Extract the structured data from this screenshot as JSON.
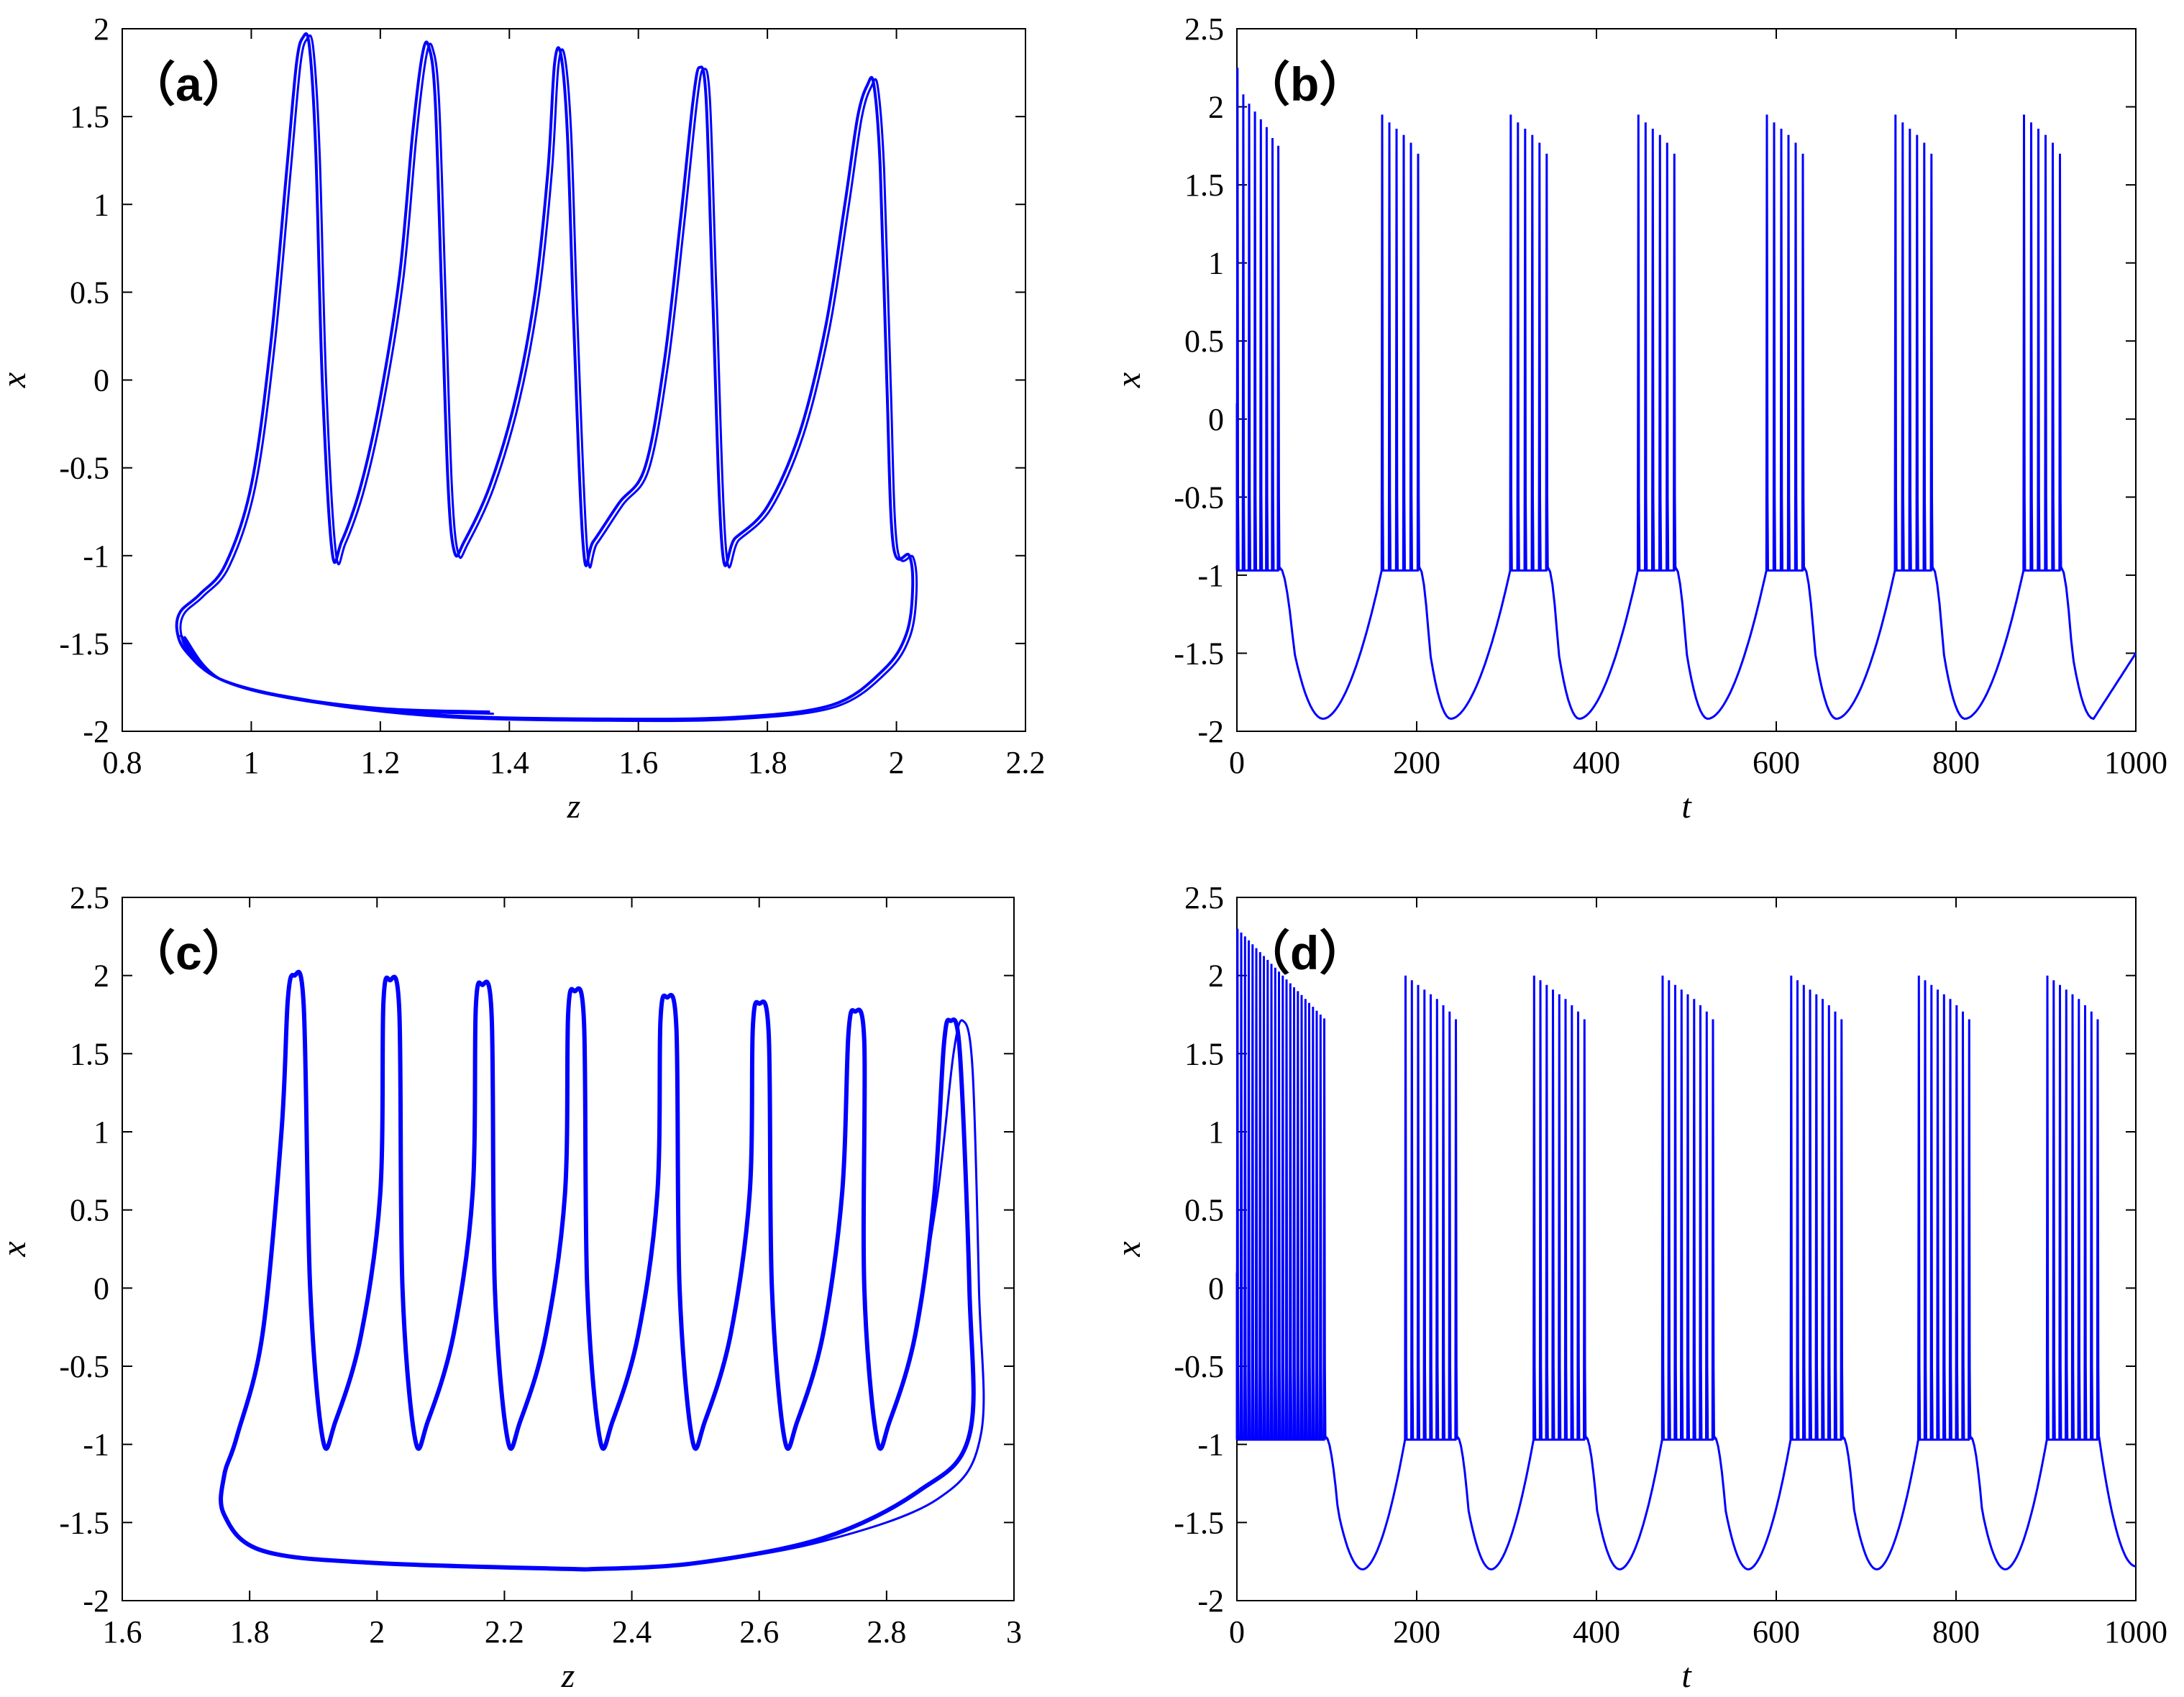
{
  "chart_data": [
    {
      "type": "line",
      "panel_label": "（a）",
      "xlabel": "z",
      "ylabel": "x",
      "xlim": [
        0.8,
        2.2
      ],
      "ylim": [
        -2,
        2
      ],
      "xticks": [
        "0.8",
        "1",
        "1.2",
        "1.4",
        "1.6",
        "1.8",
        "2",
        "2.2"
      ],
      "yticks": [
        "-2",
        "-1.5",
        "-1",
        "-0.5",
        "0",
        "0.5",
        "1",
        "1.5",
        "2"
      ],
      "line_color": "#0000ff",
      "series": [
        {
          "x": [
            1.37,
            1.2,
            1.05,
            0.95,
            0.9,
            0.885,
            0.89,
            0.92,
            0.96,
            1.0,
            1.03,
            1.055,
            1.07,
            1.08,
            1.09,
            1.1,
            1.11,
            1.125,
            1.14,
            1.17,
            1.2,
            1.23,
            1.25,
            1.265,
            1.275,
            1.285,
            1.295,
            1.305,
            1.315,
            1.33,
            1.37,
            1.41,
            1.44,
            1.46,
            1.47,
            1.48,
            1.49,
            1.5,
            1.515,
            1.53,
            1.57,
            1.61,
            1.64,
            1.665,
            1.685,
            1.695,
            1.705,
            1.715,
            1.73,
            1.75,
            1.8,
            1.85,
            1.89,
            1.92,
            1.94,
            1.955,
            1.965,
            1.975,
            1.985,
            1.995,
            2.02,
            2.025,
            2.015,
            1.98,
            1.9,
            1.75,
            1.55,
            1.3,
            1.1,
            0.95,
            0.89
          ],
          "y": [
            -1.89,
            -1.87,
            -1.8,
            -1.7,
            -1.55,
            -1.43,
            -1.32,
            -1.22,
            -1.05,
            -0.6,
            0.2,
            1.2,
            1.8,
            1.95,
            1.9,
            1.3,
            0.0,
            -0.97,
            -0.92,
            -0.6,
            -0.1,
            0.6,
            1.4,
            1.85,
            1.9,
            1.6,
            0.5,
            -0.6,
            -0.98,
            -0.92,
            -0.6,
            -0.1,
            0.5,
            1.2,
            1.8,
            1.85,
            1.4,
            0.3,
            -0.97,
            -0.92,
            -0.7,
            -0.5,
            0.1,
            0.9,
            1.6,
            1.78,
            1.6,
            0.5,
            -0.96,
            -0.9,
            -0.72,
            -0.3,
            0.3,
            1.0,
            1.5,
            1.68,
            1.68,
            1.2,
            0.0,
            -0.94,
            -1.0,
            -1.2,
            -1.45,
            -1.65,
            -1.85,
            -1.92,
            -1.93,
            -1.91,
            -1.83,
            -1.7,
            -1.45
          ]
        }
      ]
    },
    {
      "type": "line",
      "panel_label": "（b）",
      "xlabel": "t",
      "ylabel": "x",
      "xlim": [
        0,
        1000
      ],
      "ylim": [
        -2,
        2.5
      ],
      "xticks": [
        "0",
        "200",
        "400",
        "600",
        "800",
        "1000"
      ],
      "yticks": [
        "-2",
        "-1.5",
        "-1",
        "-0.5",
        "0",
        "0.5",
        "1",
        "1.5",
        "2",
        "2.5"
      ],
      "line_color": "#0000ff",
      "series": [
        {
          "description_free": true,
          "burst_starts": [
            0,
            161,
            304,
            446,
            589,
            732,
            875
          ],
          "spike_offsets": [
            0,
            8,
            16,
            24,
            32,
            40
          ],
          "spike_peaks": [
            1.95,
            1.9,
            1.86,
            1.82,
            1.77,
            1.7
          ],
          "initial_burst_peaks": [
            2.25,
            2.08,
            2.02,
            1.97,
            1.92,
            1.87,
            1.8,
            1.75
          ],
          "trough_times": [
            96,
            238,
            381,
            524,
            667,
            810,
            953
          ],
          "trough_value": -1.92,
          "end_value": -1.5
        }
      ]
    },
    {
      "type": "line",
      "panel_label": "（c）",
      "xlabel": "z",
      "ylabel": "x",
      "xlim": [
        1.6,
        3
      ],
      "ylim": [
        -2,
        2.5
      ],
      "xticks": [
        "1.6",
        "1.8",
        "2",
        "2.2",
        "2.4",
        "2.6",
        "2.8",
        "3"
      ],
      "yticks": [
        "-2",
        "-1.5",
        "-1",
        "-0.5",
        "0",
        "0.5",
        "1",
        "1.5",
        "2",
        "2.5"
      ],
      "line_color": "#0000ff",
      "series": [
        {
          "spike_z_peaks": [
            1.87,
            2.02,
            2.165,
            2.31,
            2.455,
            2.6,
            2.75,
            2.9
          ],
          "spike_x_peaks": [
            2.0,
            1.97,
            1.94,
            1.9,
            1.86,
            1.82,
            1.77,
            1.71
          ],
          "spike_z_bottoms": [
            1.915,
            2.06,
            2.205,
            2.35,
            2.495,
            2.64,
            2.785
          ],
          "bottom_value": -0.97,
          "return_z": 2.93,
          "loop_min_x": -1.8,
          "loop_min_z": 2.33,
          "leftmost_z": 1.76
        }
      ]
    },
    {
      "type": "line",
      "panel_label": "（d）",
      "xlabel": "t",
      "ylabel": "x",
      "xlim": [
        0,
        1000
      ],
      "ylim": [
        -2,
        2.5
      ],
      "xticks": [
        "0",
        "200",
        "400",
        "600",
        "800",
        "1000"
      ],
      "yticks": [
        "-2",
        "-1.5",
        "-1",
        "-0.5",
        "0",
        "0.5",
        "1",
        "1.5",
        "2",
        "2.5"
      ],
      "line_color": "#0000ff",
      "series": [
        {
          "burst_starts": [
            187,
            330,
            473,
            616,
            758,
            901
          ],
          "spike_offsets": [
            0,
            7,
            14,
            21,
            28,
            35,
            42,
            49,
            56
          ],
          "spike_peaks": [
            2.0,
            1.97,
            1.94,
            1.91,
            1.88,
            1.85,
            1.81,
            1.77,
            1.72
          ],
          "initial_spike_count": 24,
          "initial_spike_interval": 4.2,
          "trough_times": [
            140,
            283,
            426,
            569,
            712,
            855
          ],
          "trough_value": -1.8,
          "end_value": -1.78
        }
      ]
    }
  ]
}
